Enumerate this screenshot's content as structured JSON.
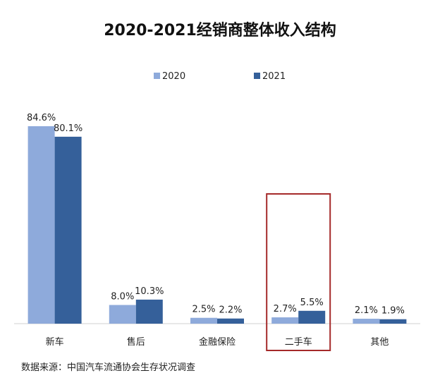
{
  "chart_data": {
    "type": "bar",
    "title": "2020-2021经销商整体收入结构",
    "categories": [
      "新车",
      "售后",
      "金融保险",
      "二手车",
      "其他"
    ],
    "series": [
      {
        "name": "2020",
        "values": [
          84.6,
          8.0,
          2.5,
          2.7,
          2.1
        ],
        "labels": [
          "84.6%",
          "8.0%",
          "2.5%",
          "2.7%",
          "2.1%"
        ],
        "color": "#8eaadb"
      },
      {
        "name": "2021",
        "values": [
          80.1,
          10.3,
          2.2,
          5.5,
          1.9
        ],
        "labels": [
          "80.1%",
          "10.3%",
          "2.2%",
          "5.5%",
          "1.9%"
        ],
        "color": "#35609a"
      }
    ],
    "ylim": [
      0,
      100
    ],
    "legend_position": "top-center",
    "highlight_category": "二手车",
    "highlight_color": "#a52a2a",
    "axis_color": "#d0d0d0"
  },
  "source_note": "数据来源：中国汽车流通协会生存状况调查"
}
